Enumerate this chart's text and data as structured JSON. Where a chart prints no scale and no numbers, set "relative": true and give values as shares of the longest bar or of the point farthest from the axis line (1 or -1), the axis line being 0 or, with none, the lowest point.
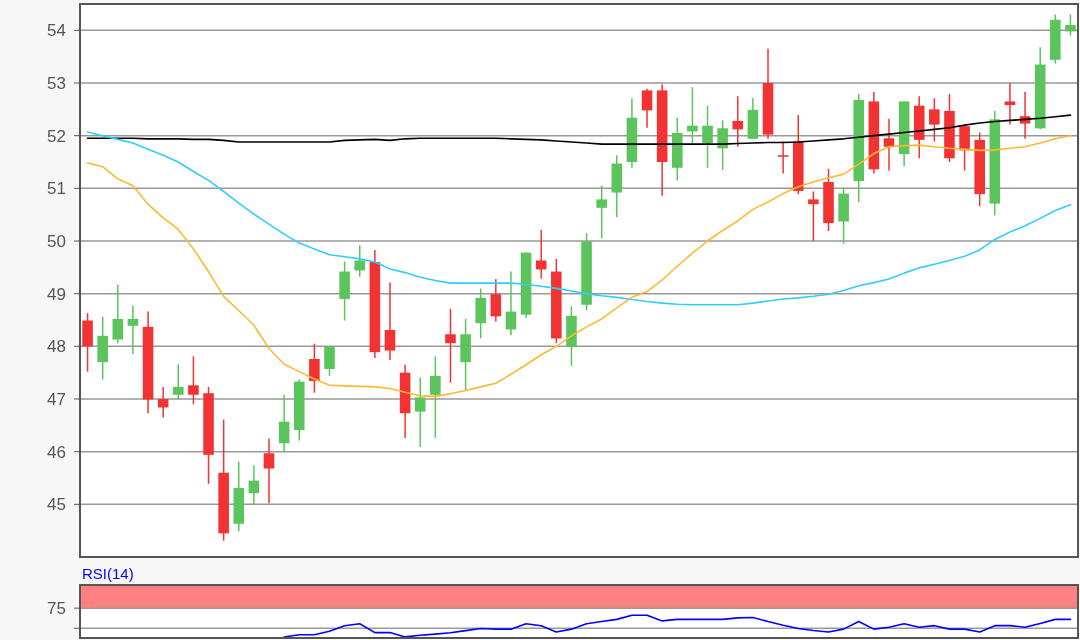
{
  "chart_data": [
    {
      "type": "candlestick",
      "categories": [
        null,
        null,
        null,
        null,
        null,
        null,
        null,
        null,
        null,
        null,
        null,
        null,
        null,
        null,
        null,
        null,
        null,
        null,
        null,
        null,
        null,
        null,
        null,
        null,
        null,
        null,
        null,
        null,
        null,
        null,
        null,
        null,
        null,
        null,
        null,
        null,
        null,
        null,
        null,
        null,
        null,
        null,
        null,
        null,
        null,
        null,
        null,
        null,
        null,
        null,
        null,
        null,
        null,
        null,
        null,
        null,
        null,
        null,
        null,
        null,
        null,
        null,
        null,
        null,
        null,
        null
      ],
      "ohlc": [
        [
          48.49,
          48.63,
          47.52,
          48.0
        ],
        [
          47.7,
          48.56,
          47.37,
          48.2
        ],
        [
          48.13,
          49.17,
          48.06,
          48.52
        ],
        [
          48.39,
          48.77,
          47.85,
          48.52
        ],
        [
          48.37,
          48.66,
          46.73,
          46.99
        ],
        [
          47.0,
          47.23,
          46.65,
          46.84
        ],
        [
          47.08,
          47.66,
          46.99,
          47.23
        ],
        [
          47.26,
          47.81,
          46.9,
          47.08
        ],
        [
          47.11,
          47.23,
          45.39,
          45.94
        ],
        [
          45.6,
          46.61,
          44.31,
          44.45
        ],
        [
          44.63,
          45.81,
          44.49,
          45.31
        ],
        [
          45.21,
          45.74,
          45.0,
          45.45
        ],
        [
          45.97,
          46.25,
          45.02,
          45.68
        ],
        [
          46.16,
          47.08,
          45.99,
          46.57
        ],
        [
          46.41,
          47.37,
          46.21,
          47.33
        ],
        [
          47.76,
          48.05,
          47.12,
          47.34
        ],
        [
          47.57,
          47.99,
          47.44,
          47.99
        ],
        [
          48.9,
          49.61,
          48.49,
          49.42
        ],
        [
          49.44,
          49.92,
          49.32,
          49.63
        ],
        [
          49.6,
          49.83,
          47.78,
          47.89
        ],
        [
          48.31,
          49.21,
          47.74,
          47.92
        ],
        [
          47.5,
          47.65,
          46.26,
          46.73
        ],
        [
          46.76,
          47.41,
          46.09,
          47.03
        ],
        [
          47.08,
          47.81,
          46.26,
          47.44
        ],
        [
          48.23,
          48.71,
          47.31,
          48.06
        ],
        [
          47.7,
          48.52,
          47.16,
          48.23
        ],
        [
          48.44,
          49.1,
          48.15,
          48.92
        ],
        [
          48.99,
          49.28,
          48.47,
          48.57
        ],
        [
          48.32,
          49.42,
          48.21,
          48.66
        ],
        [
          48.6,
          49.78,
          48.54,
          49.78
        ],
        [
          49.63,
          50.21,
          49.29,
          49.46
        ],
        [
          49.42,
          49.66,
          48.06,
          48.15
        ],
        [
          48.0,
          48.76,
          47.63,
          48.58
        ],
        [
          48.79,
          50.15,
          48.68,
          49.99
        ],
        [
          50.63,
          51.05,
          50.05,
          50.79
        ],
        [
          50.92,
          51.63,
          50.45,
          51.47
        ],
        [
          51.5,
          52.71,
          51.39,
          52.34
        ],
        [
          52.86,
          52.89,
          52.15,
          52.48
        ],
        [
          52.86,
          52.97,
          50.86,
          51.5
        ],
        [
          51.39,
          52.34,
          51.15,
          52.05
        ],
        [
          52.08,
          52.92,
          51.86,
          52.19
        ],
        [
          51.86,
          52.57,
          51.39,
          52.19
        ],
        [
          51.76,
          52.29,
          51.35,
          52.14
        ],
        [
          52.28,
          52.75,
          51.79,
          52.12
        ],
        [
          51.94,
          52.71,
          51.94,
          52.49
        ],
        [
          53.0,
          53.65,
          51.94,
          52.02
        ],
        [
          51.63,
          51.89,
          51.28,
          51.6
        ],
        [
          51.89,
          52.39,
          50.89,
          50.95
        ],
        [
          50.79,
          50.94,
          50.0,
          50.7
        ],
        [
          51.12,
          51.37,
          50.19,
          50.34
        ],
        [
          50.37,
          51.01,
          49.95,
          50.9
        ],
        [
          51.14,
          52.79,
          50.74,
          52.68
        ],
        [
          52.65,
          52.83,
          51.28,
          51.36
        ],
        [
          51.95,
          52.32,
          51.34,
          51.79
        ],
        [
          51.65,
          52.65,
          51.42,
          52.65
        ],
        [
          52.57,
          52.75,
          51.57,
          51.92
        ],
        [
          52.5,
          52.71,
          51.89,
          52.21
        ],
        [
          52.47,
          52.79,
          51.5,
          51.57
        ],
        [
          52.18,
          52.18,
          51.34,
          51.72
        ],
        [
          51.92,
          52.06,
          50.66,
          50.89
        ],
        [
          50.71,
          52.47,
          50.49,
          52.31
        ],
        [
          52.65,
          53.0,
          52.21,
          52.58
        ],
        [
          52.37,
          52.83,
          51.94,
          52.23
        ],
        [
          52.14,
          53.68,
          52.12,
          53.35
        ],
        [
          53.44,
          54.3,
          53.37,
          54.2
        ],
        [
          53.98,
          54.3,
          53.9,
          54.1
        ]
      ],
      "series": [
        {
          "type": "line",
          "color": "#000000",
          "values": [
            51.95,
            51.95,
            51.95,
            51.95,
            51.94,
            51.94,
            51.94,
            51.93,
            51.93,
            51.91,
            51.88,
            51.88,
            51.88,
            51.88,
            51.88,
            51.88,
            51.88,
            51.91,
            51.92,
            51.93,
            51.91,
            51.94,
            51.95,
            51.95,
            51.95,
            51.95,
            51.95,
            51.95,
            51.94,
            51.93,
            51.92,
            51.9,
            51.88,
            51.86,
            51.84,
            51.84,
            51.84,
            51.84,
            51.84,
            51.84,
            51.84,
            51.84,
            51.84,
            51.85,
            51.86,
            51.87,
            51.87,
            51.88,
            51.9,
            51.92,
            51.94,
            51.97,
            52.0,
            52.03,
            52.06,
            52.09,
            52.12,
            52.15,
            52.2,
            52.24,
            52.27,
            52.29,
            52.31,
            52.33,
            52.36,
            52.39
          ]
        },
        {
          "type": "line",
          "color": "#33ccff",
          "values": [
            52.07,
            52.0,
            51.93,
            51.86,
            51.74,
            51.63,
            51.5,
            51.32,
            51.15,
            50.94,
            50.72,
            50.51,
            50.32,
            50.13,
            49.96,
            49.85,
            49.74,
            49.7,
            49.66,
            49.6,
            49.47,
            49.4,
            49.31,
            49.25,
            49.2,
            49.2,
            49.2,
            49.2,
            49.2,
            49.18,
            49.14,
            49.1,
            49.05,
            49.0,
            48.96,
            48.93,
            48.89,
            48.85,
            48.82,
            48.8,
            48.79,
            48.79,
            48.79,
            48.79,
            48.82,
            48.86,
            48.9,
            48.92,
            48.95,
            48.99,
            49.06,
            49.15,
            49.21,
            49.28,
            49.39,
            49.49,
            49.56,
            49.63,
            49.71,
            49.83,
            50.03,
            50.17,
            50.29,
            50.43,
            50.58,
            50.69
          ]
        },
        {
          "type": "line",
          "color": "#ffb833",
          "values": [
            51.48,
            51.41,
            51.18,
            51.05,
            50.7,
            50.44,
            50.22,
            49.85,
            49.42,
            48.95,
            48.68,
            48.4,
            47.96,
            47.66,
            47.52,
            47.38,
            47.26,
            47.25,
            47.24,
            47.23,
            47.2,
            47.13,
            47.06,
            47.05,
            47.1,
            47.16,
            47.23,
            47.3,
            47.47,
            47.65,
            47.84,
            48.0,
            48.2,
            48.37,
            48.52,
            48.73,
            48.93,
            49.04,
            49.26,
            49.52,
            49.77,
            50.0,
            50.2,
            50.38,
            50.6,
            50.74,
            50.9,
            51.03,
            51.12,
            51.2,
            51.27,
            51.46,
            51.66,
            51.79,
            51.81,
            51.82,
            51.79,
            51.76,
            51.74,
            51.72,
            51.73,
            51.76,
            51.79,
            51.86,
            51.94,
            52.0
          ]
        }
      ],
      "ylim": [
        44,
        54.5
      ],
      "yticks": [
        45,
        46,
        47,
        48,
        49,
        50,
        51,
        52,
        53,
        54
      ],
      "grid": "y",
      "tick_labels": "y"
    },
    {
      "type": "line",
      "categories": [
        null,
        null,
        null,
        null,
        null,
        null,
        null,
        null,
        null,
        null,
        null,
        null,
        null,
        null,
        null,
        null,
        null,
        null,
        null,
        null,
        null,
        null,
        null,
        null,
        null,
        null,
        null,
        null,
        null,
        null,
        null,
        null,
        null,
        null,
        null,
        null,
        null,
        null,
        null,
        null,
        null,
        null,
        null,
        null,
        null,
        null,
        null,
        null,
        null,
        null,
        null,
        null,
        null,
        null,
        null,
        null,
        null,
        null,
        null,
        null,
        null,
        null,
        null,
        null,
        null,
        null
      ],
      "series": [
        {
          "name": "RSI(14)",
          "color": "#0000ff",
          "values": [
            null,
            null,
            null,
            null,
            null,
            null,
            null,
            null,
            null,
            null,
            null,
            null,
            null,
            0,
            0.1,
            0.1,
            0.26,
            0.52,
            0.61,
            0.2,
            0.2,
            0,
            0.08,
            0.13,
            0.19,
            0.29,
            0.39,
            0.36,
            0.36,
            0.61,
            0.52,
            0.23,
            0.36,
            0.61,
            0.71,
            0.81,
            1,
            1,
            0.74,
            0.81,
            0.81,
            0.81,
            0.81,
            0.88,
            0.9,
            0.71,
            0.54,
            0.39,
            0.3,
            0.23,
            0.36,
            0.71,
            0.36,
            0.45,
            0.61,
            0.45,
            0.52,
            0.36,
            0.36,
            0.23,
            0.52,
            0.52,
            0.45,
            0.62,
            0.81,
            0.81
          ]
        }
      ],
      "relative": true,
      "bands": [
        {
          "axis": "y",
          "from": 1.33,
          "to": 2.4,
          "color": "#ff8080"
        }
      ],
      "annotations": [
        "75"
      ],
      "ref_lines": [
        {
          "axis": "y",
          "value": 1.33,
          "color": "#999999"
        },
        {
          "axis": "y",
          "value": 0.4,
          "color": "#999999"
        }
      ]
    }
  ]
}
